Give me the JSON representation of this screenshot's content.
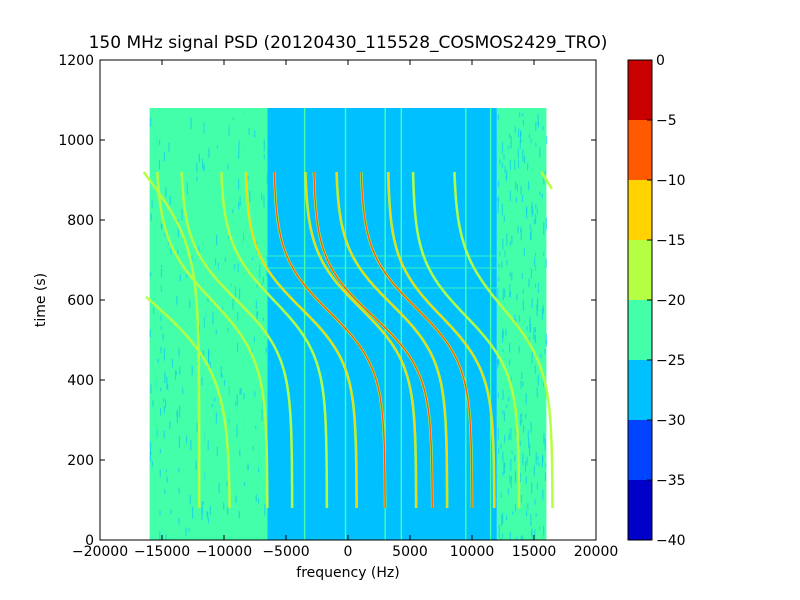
{
  "chart_data": {
    "type": "heatmap",
    "title": "150 MHz signal PSD (20120430_115528_COSMOS2429_TRO)",
    "xlabel": "frequency (Hz)",
    "ylabel": "time (s)",
    "xlim": [
      -20000,
      20000
    ],
    "ylim": [
      0,
      1200
    ],
    "x_ticks": [
      -20000,
      -15000,
      -10000,
      -5000,
      0,
      5000,
      10000,
      15000,
      20000
    ],
    "y_ticks": [
      0,
      200,
      400,
      600,
      800,
      1000,
      1200
    ],
    "data_extent": {
      "x": [
        -16000,
        16000
      ],
      "y": [
        0,
        1080
      ]
    },
    "grid": false,
    "colorbar": {
      "ticks": [
        0,
        -5,
        -10,
        -15,
        -20,
        -25,
        -30,
        -35,
        -40
      ],
      "range": [
        -40,
        0
      ],
      "levels": [
        {
          "from": -40,
          "to": -35,
          "color": "#0000c8"
        },
        {
          "from": -35,
          "to": -30,
          "color": "#0044ff"
        },
        {
          "from": -30,
          "to": -25,
          "color": "#00c0ff"
        },
        {
          "from": -25,
          "to": -20,
          "color": "#44ffaa"
        },
        {
          "from": -20,
          "to": -15,
          "color": "#b4ff44"
        },
        {
          "from": -15,
          "to": -10,
          "color": "#ffd200"
        },
        {
          "from": -10,
          "to": -5,
          "color": "#ff5a00"
        },
        {
          "from": -5,
          "to": 0,
          "color": "#c80000"
        }
      ]
    },
    "background": {
      "center_region": {
        "x": [
          -6500,
          12000
        ],
        "level": -27
      },
      "edge_regions": [
        {
          "x": [
            -16000,
            -6500
          ],
          "level": -22
        },
        {
          "x": [
            12000,
            16000
          ],
          "level": -22
        }
      ],
      "vertical_lines_hz": [
        -15500,
        -11500,
        -9500,
        -8500,
        -3500,
        -200,
        3000,
        4300,
        9500,
        11500
      ],
      "horizontal_lines_s": [
        630,
        680,
        710
      ]
    },
    "traces": [
      {
        "f0": -16000,
        "t0": 600,
        "A": 6500,
        "s": 180,
        "level": -17
      },
      {
        "f0": -16000,
        "t0": 900,
        "A": 4000,
        "s": 170,
        "level": -17
      },
      {
        "f0": -11000,
        "t0": 600,
        "A": 4500,
        "s": 150,
        "level": -17
      },
      {
        "f0": -9000,
        "t0": 600,
        "A": 4500,
        "s": 140,
        "level": -17
      },
      {
        "f0": -6000,
        "t0": 600,
        "A": 4300,
        "s": 140,
        "level": -17
      },
      {
        "f0": -3800,
        "t0": 580,
        "A": 4500,
        "s": 140,
        "level": -12
      },
      {
        "f0": -1500,
        "t0": 570,
        "A": 4500,
        "s": 140,
        "level": -5
      },
      {
        "f0": 1000,
        "t0": 580,
        "A": 4500,
        "s": 140,
        "level": -12
      },
      {
        "f0": 2000,
        "t0": 560,
        "A": 4800,
        "s": 140,
        "level": -7
      },
      {
        "f0": 3500,
        "t0": 590,
        "A": 4500,
        "s": 140,
        "level": -12
      },
      {
        "f0": 5500,
        "t0": 580,
        "A": 4500,
        "s": 140,
        "level": -7
      },
      {
        "f0": 7500,
        "t0": 560,
        "A": 4300,
        "s": 140,
        "level": -10
      },
      {
        "f0": 9500,
        "t0": 560,
        "A": 4300,
        "s": 140,
        "level": -15
      },
      {
        "f0": 12500,
        "t0": 580,
        "A": 4000,
        "s": 150,
        "level": -17
      },
      {
        "f0": 16000,
        "t0": 900,
        "A": 3000,
        "s": 150,
        "level": -17
      }
    ]
  }
}
